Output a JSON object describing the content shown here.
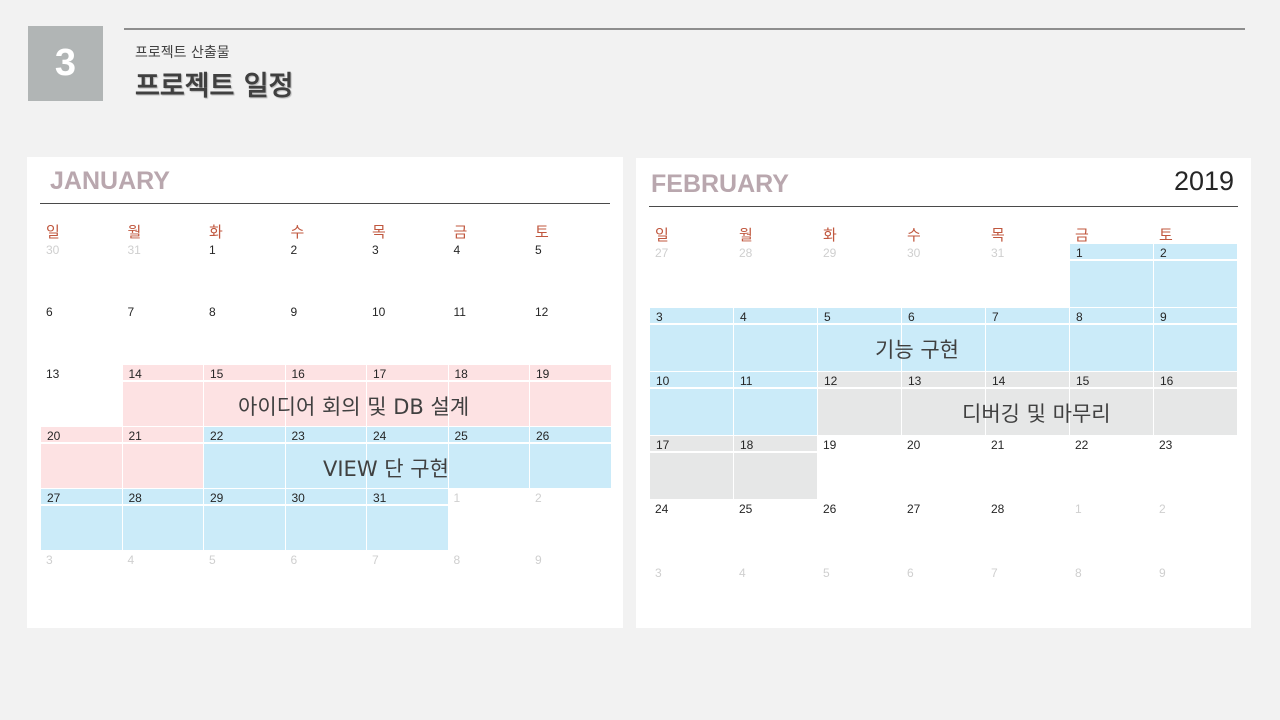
{
  "header": {
    "section_number": "3",
    "subtitle": "프로젝트 산출물",
    "title": "프로젝트 일정"
  },
  "weekdays": [
    "일",
    "월",
    "화",
    "수",
    "목",
    "금",
    "토"
  ],
  "colors": {
    "event_pink": "#fde2e3",
    "event_blue": "#cbebf9",
    "event_gray": "#e6e7e7",
    "weekday_red": "#c0573e",
    "month_title": "#b9a7ae"
  },
  "january": {
    "month": "JANUARY",
    "weeks": [
      [
        {
          "d": "30",
          "m": true
        },
        {
          "d": "31",
          "m": true
        },
        {
          "d": "1"
        },
        {
          "d": "2"
        },
        {
          "d": "3"
        },
        {
          "d": "4"
        },
        {
          "d": "5"
        }
      ],
      [
        {
          "d": "6"
        },
        {
          "d": "7"
        },
        {
          "d": "8"
        },
        {
          "d": "9"
        },
        {
          "d": "10"
        },
        {
          "d": "11"
        },
        {
          "d": "12"
        }
      ],
      [
        {
          "d": "13"
        },
        {
          "d": "14",
          "c": "pink"
        },
        {
          "d": "15",
          "c": "pink"
        },
        {
          "d": "16",
          "c": "pink"
        },
        {
          "d": "17",
          "c": "pink"
        },
        {
          "d": "18",
          "c": "pink"
        },
        {
          "d": "19",
          "c": "pink"
        }
      ],
      [
        {
          "d": "20",
          "c": "pink"
        },
        {
          "d": "21",
          "c": "pink"
        },
        {
          "d": "22",
          "c": "blue"
        },
        {
          "d": "23",
          "c": "blue"
        },
        {
          "d": "24",
          "c": "blue"
        },
        {
          "d": "25",
          "c": "blue"
        },
        {
          "d": "26",
          "c": "blue"
        }
      ],
      [
        {
          "d": "27",
          "c": "blue"
        },
        {
          "d": "28",
          "c": "blue"
        },
        {
          "d": "29",
          "c": "blue"
        },
        {
          "d": "30",
          "c": "blue"
        },
        {
          "d": "31",
          "c": "blue"
        },
        {
          "d": "1",
          "m": true
        },
        {
          "d": "2",
          "m": true
        }
      ],
      [
        {
          "d": "3",
          "m": true
        },
        {
          "d": "4",
          "m": true
        },
        {
          "d": "5",
          "m": true
        },
        {
          "d": "6",
          "m": true
        },
        {
          "d": "7",
          "m": true
        },
        {
          "d": "8",
          "m": true
        },
        {
          "d": "9",
          "m": true
        }
      ]
    ],
    "events": {
      "idea_db": "아이디어 회의 및 DB 설계",
      "view": "VIEW 단 구현"
    }
  },
  "february": {
    "month": "FEBRUARY",
    "year": "2019",
    "weeks": [
      [
        {
          "d": "27",
          "m": true
        },
        {
          "d": "28",
          "m": true
        },
        {
          "d": "29",
          "m": true
        },
        {
          "d": "30",
          "m": true
        },
        {
          "d": "31",
          "m": true
        },
        {
          "d": "1",
          "c": "blue"
        },
        {
          "d": "2",
          "c": "blue"
        }
      ],
      [
        {
          "d": "3",
          "c": "blue"
        },
        {
          "d": "4",
          "c": "blue"
        },
        {
          "d": "5",
          "c": "blue"
        },
        {
          "d": "6",
          "c": "blue"
        },
        {
          "d": "7",
          "c": "blue"
        },
        {
          "d": "8",
          "c": "blue"
        },
        {
          "d": "9",
          "c": "blue"
        }
      ],
      [
        {
          "d": "10",
          "c": "blue"
        },
        {
          "d": "11",
          "c": "blue"
        },
        {
          "d": "12",
          "c": "gray"
        },
        {
          "d": "13",
          "c": "gray"
        },
        {
          "d": "14",
          "c": "gray"
        },
        {
          "d": "15",
          "c": "gray"
        },
        {
          "d": "16",
          "c": "gray"
        }
      ],
      [
        {
          "d": "17",
          "c": "gray"
        },
        {
          "d": "18",
          "c": "gray"
        },
        {
          "d": "19"
        },
        {
          "d": "20"
        },
        {
          "d": "21"
        },
        {
          "d": "22"
        },
        {
          "d": "23"
        }
      ],
      [
        {
          "d": "24"
        },
        {
          "d": "25"
        },
        {
          "d": "26"
        },
        {
          "d": "27"
        },
        {
          "d": "28"
        },
        {
          "d": "1",
          "m": true
        },
        {
          "d": "2",
          "m": true
        }
      ],
      [
        {
          "d": "3",
          "m": true
        },
        {
          "d": "4",
          "m": true
        },
        {
          "d": "5",
          "m": true
        },
        {
          "d": "6",
          "m": true
        },
        {
          "d": "7",
          "m": true
        },
        {
          "d": "8",
          "m": true
        },
        {
          "d": "9",
          "m": true
        }
      ]
    ],
    "events": {
      "feature": "기능 구현",
      "debug": "디버깅 및 마무리"
    }
  }
}
